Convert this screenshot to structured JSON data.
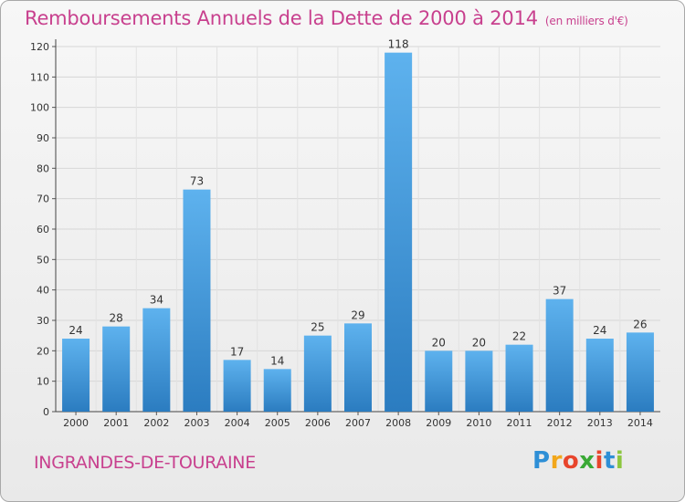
{
  "title": "Remboursements Annuels de la Dette de 2000 à 2014",
  "subtitle": "(en milliers d'€)",
  "commune": "INGRANDES-DE-TOURAINE",
  "logo": {
    "letters": [
      "P",
      "r",
      "o",
      "x",
      "i",
      "t",
      "i"
    ],
    "colors": [
      "#2e8fd6",
      "#f2a71b",
      "#e8452c",
      "#3aa935",
      "#e8452c",
      "#2e8fd6",
      "#8cc63f"
    ]
  },
  "colors": {
    "bar_top": "#5eb2ee",
    "bar_bottom": "#2b7cc0",
    "title": "#c8408e"
  },
  "chart_data": {
    "type": "bar",
    "categories": [
      "2000",
      "2001",
      "2002",
      "2003",
      "2004",
      "2005",
      "2006",
      "2007",
      "2008",
      "2009",
      "2010",
      "2011",
      "2012",
      "2013",
      "2014"
    ],
    "values": [
      24,
      28,
      34,
      73,
      17,
      14,
      25,
      29,
      118,
      20,
      20,
      22,
      37,
      24,
      26
    ],
    "ylim": [
      0,
      120
    ],
    "yticks": [
      0,
      10,
      20,
      30,
      40,
      50,
      60,
      70,
      80,
      90,
      100,
      110,
      120
    ],
    "grid": true,
    "xlabel": "",
    "ylabel": ""
  }
}
